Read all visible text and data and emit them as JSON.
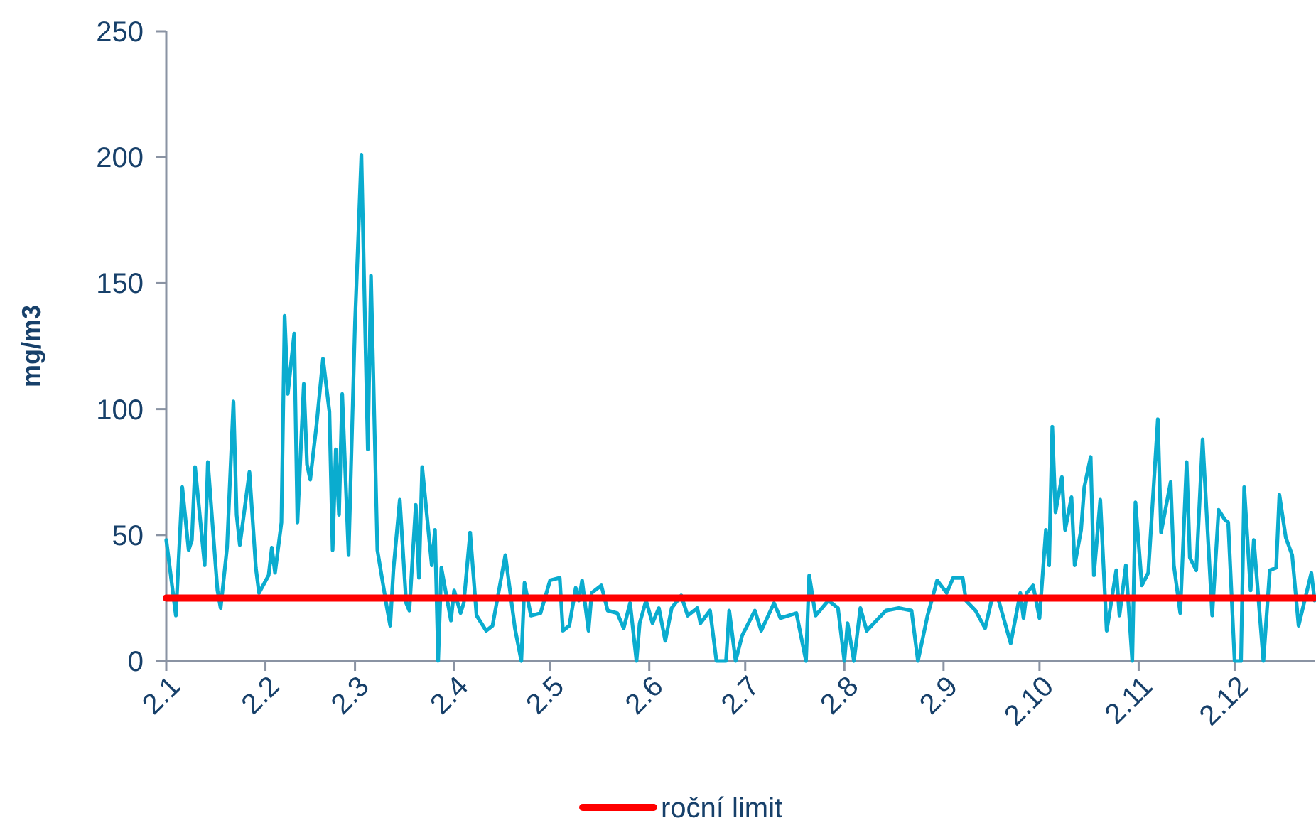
{
  "chart_data": {
    "type": "line",
    "ylabel": "mg/m3",
    "xlim": [
      "--01-02",
      "--12-27"
    ],
    "ylim": [
      0,
      250
    ],
    "yticks": [
      0,
      50,
      100,
      150,
      200,
      250
    ],
    "xticks": [
      {
        "value": "--01-02",
        "label": "2.1"
      },
      {
        "value": "--02-02",
        "label": "2.2"
      },
      {
        "value": "--03-02",
        "label": "2.3"
      },
      {
        "value": "--04-02",
        "label": "2.4"
      },
      {
        "value": "--05-02",
        "label": "2.5"
      },
      {
        "value": "--06-02",
        "label": "2.6"
      },
      {
        "value": "--07-02",
        "label": "2.7"
      },
      {
        "value": "--08-02",
        "label": "2.8"
      },
      {
        "value": "--09-02",
        "label": "2.9"
      },
      {
        "value": "--10-02",
        "label": "2.10"
      },
      {
        "value": "--11-02",
        "label": "2.11"
      },
      {
        "value": "--12-02",
        "label": "2.12"
      }
    ],
    "grid": false,
    "legend": "bottom",
    "marker": "none",
    "line_style": "solid",
    "series": [
      {
        "color": "#0aaccf",
        "x": [
          "--01-02",
          "--01-05",
          "--01-07",
          "--01-09",
          "--01-10",
          "--01-11",
          "--01-14",
          "--01-15",
          "--01-18",
          "--01-19",
          "--01-21",
          "--01-23",
          "--01-24",
          "--01-25",
          "--01-28",
          "--01-30",
          "--01-31",
          "--02-03",
          "--02-04",
          "--02-05",
          "--02-07",
          "--02-08",
          "--02-09",
          "--02-11",
          "--02-12",
          "--02-14",
          "--02-15",
          "--02-16",
          "--02-18",
          "--02-20",
          "--02-22",
          "--02-23",
          "--02-24",
          "--02-25",
          "--02-26",
          "--02-28",
          "--03-02",
          "--03-04",
          "--03-06",
          "--03-07",
          "--03-09",
          "--03-12",
          "--03-13",
          "--03-14",
          "--03-16",
          "--03-18",
          "--03-19",
          "--03-21",
          "--03-22",
          "--03-23",
          "--03-26",
          "--03-27",
          "--03-28",
          "--03-29",
          "--04-01",
          "--04-02",
          "--04-04",
          "--04-05",
          "--04-07",
          "--04-09",
          "--04-12",
          "--04-14",
          "--04-18",
          "--04-21",
          "--04-23",
          "--04-24",
          "--04-26",
          "--04-29",
          "--05-02",
          "--05-05",
          "--05-06",
          "--05-08",
          "--05-10",
          "--05-11",
          "--05-12",
          "--05-14",
          "--05-15",
          "--05-18",
          "--05-20",
          "--05-23",
          "--05-25",
          "--05-27",
          "--05-29",
          "--05-30",
          "--06-01",
          "--06-03",
          "--06-05",
          "--06-07",
          "--06-09",
          "--06-12",
          "--06-14",
          "--06-17",
          "--06-18",
          "--06-21",
          "--06-23",
          "--06-26",
          "--06-27",
          "--06-29",
          "--07-01",
          "--07-05",
          "--07-07",
          "--07-11",
          "--07-13",
          "--07-18",
          "--07-21",
          "--07-22",
          "--07-24",
          "--07-28",
          "--07-31",
          "--08-02",
          "--08-03",
          "--08-05",
          "--08-07",
          "--08-09",
          "--08-12",
          "--08-15",
          "--08-19",
          "--08-23",
          "--08-25",
          "--08-28",
          "--08-31",
          "--09-03",
          "--09-05",
          "--09-08",
          "--09-09",
          "--09-12",
          "--09-15",
          "--09-17",
          "--09-19",
          "--09-23",
          "--09-26",
          "--09-27",
          "--09-28",
          "--09-30",
          "--10-02",
          "--10-04",
          "--10-05",
          "--10-06",
          "--10-07",
          "--10-09",
          "--10-10",
          "--10-12",
          "--10-13",
          "--10-15",
          "--10-16",
          "--10-18",
          "--10-19",
          "--10-21",
          "--10-23",
          "--10-26",
          "--10-27",
          "--10-29",
          "--10-31",
          "--11-01",
          "--11-03",
          "--11-05",
          "--11-08",
          "--11-09",
          "--11-12",
          "--11-13",
          "--11-15",
          "--11-17",
          "--11-18",
          "--11-20",
          "--11-22",
          "--11-25",
          "--11-27",
          "--11-29",
          "--11-30",
          "--12-02",
          "--12-04",
          "--12-05",
          "--12-07",
          "--12-08",
          "--12-11",
          "--12-13",
          "--12-15",
          "--12-16",
          "--12-18",
          "--12-20",
          "--12-22",
          "--12-26",
          "--12-27"
        ],
        "values": [
          48,
          18,
          69,
          44,
          48,
          77,
          38,
          79,
          28,
          21,
          45,
          103,
          58,
          46,
          75,
          37,
          27,
          34,
          45,
          35,
          55,
          137,
          106,
          130,
          55,
          110,
          78,
          72,
          94,
          120,
          99,
          44,
          84,
          58,
          106,
          42,
          134,
          201,
          84,
          153,
          44,
          21,
          14,
          36,
          64,
          23,
          20,
          62,
          33,
          77,
          38,
          52,
          0,
          37,
          16,
          28,
          19,
          23,
          51,
          18,
          12,
          14,
          42,
          13,
          0,
          31,
          18,
          19,
          32,
          33,
          12,
          14,
          29,
          24,
          32,
          12,
          27,
          30,
          20,
          19,
          13,
          23,
          0,
          15,
          24,
          15,
          21,
          8,
          21,
          26,
          18,
          21,
          15,
          20,
          0,
          0,
          20,
          0,
          10,
          20,
          12,
          23,
          17,
          19,
          0,
          34,
          18,
          24,
          21,
          0,
          15,
          0,
          21,
          12,
          16,
          20,
          21,
          20,
          0,
          18,
          32,
          27,
          33,
          33,
          24,
          20,
          13,
          24,
          25,
          7,
          27,
          17,
          27,
          30,
          17,
          52,
          38,
          93,
          59,
          73,
          52,
          65,
          38,
          52,
          69,
          81,
          34,
          64,
          12,
          36,
          18,
          38,
          0,
          63,
          30,
          35,
          96,
          51,
          71,
          38,
          19,
          79,
          41,
          36,
          88,
          18,
          60,
          56,
          55,
          0,
          0,
          69,
          28,
          48,
          0,
          36,
          37,
          66,
          49,
          42,
          14,
          35,
          24
        ]
      },
      {
        "name": "roční limit",
        "color": "#ff0000",
        "x": [
          "--01-02",
          "--12-27"
        ],
        "values": [
          25,
          25
        ]
      }
    ]
  }
}
